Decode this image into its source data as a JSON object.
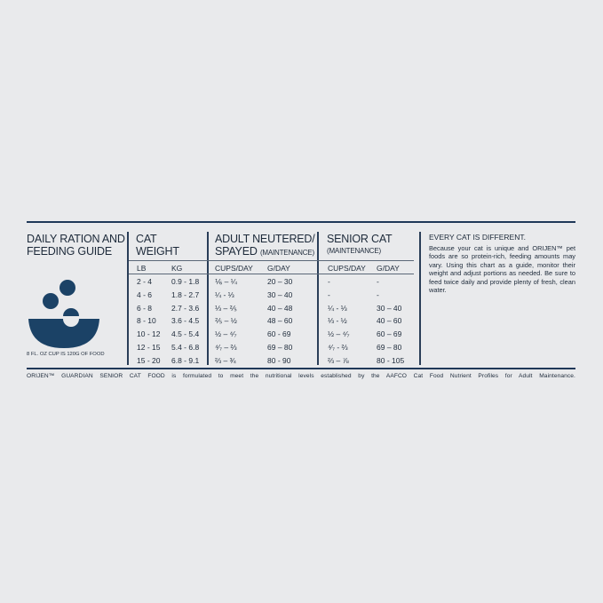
{
  "title": "DAILY RATION AND FEEDING GUIDE",
  "title_line1": "DAILY RATION AND",
  "title_line2": "FEEDING GUIDE",
  "cup_note": "8 FL. OZ CUP IS 120G OF FOOD",
  "weight": {
    "heading1": "CAT",
    "heading2": "WEIGHT",
    "col_lb": "LB",
    "col_kg": "KG"
  },
  "adult": {
    "heading1": "ADULT NEUTERED/",
    "heading2": "SPAYED",
    "heading2_small": "(MAINTENANCE)",
    "col_cups": "CUPS/DAY",
    "col_g": "G/DAY"
  },
  "senior": {
    "heading1": "SENIOR CAT",
    "heading2_small": "(MAINTENANCE)",
    "col_cups": "CUPS/DAY",
    "col_g": "G/DAY"
  },
  "rows": [
    {
      "lb": "2 - 4",
      "kg": "0.9 - 1.8",
      "adult_cups": "⅙ – ¼",
      "adult_g": "20 – 30",
      "senior_cups": "-",
      "senior_g": "-"
    },
    {
      "lb": "4 - 6",
      "kg": "1.8 - 2.7",
      "adult_cups": "¼ - ⅓",
      "adult_g": "30 – 40",
      "senior_cups": "-",
      "senior_g": "-"
    },
    {
      "lb": "6 - 8",
      "kg": "2.7 - 3.6",
      "adult_cups": "⅓ – ⅖",
      "adult_g": "40 – 48",
      "senior_cups": "¼ - ⅓",
      "senior_g": "30 – 40"
    },
    {
      "lb": "8 - 10",
      "kg": "3.6 - 4.5",
      "adult_cups": "⅖ – ½",
      "adult_g": "48 – 60",
      "senior_cups": "⅓ - ½",
      "senior_g": "40 – 60"
    },
    {
      "lb": "10 - 12",
      "kg": "4.5 - 5.4",
      "adult_cups": "½ – ⁴⁄₇",
      "adult_g": "60 - 69",
      "senior_cups": "½ – ⁴⁄₇",
      "senior_g": "60 – 69"
    },
    {
      "lb": "12 - 15",
      "kg": "5.4 - 6.8",
      "adult_cups": "⁴⁄₇ – ⅔",
      "adult_g": "69 – 80",
      "senior_cups": "⁴⁄₇ - ⅔",
      "senior_g": "69 – 80"
    },
    {
      "lb": "15 - 20",
      "kg": "6.8 - 9.1",
      "adult_cups": "⅔ – ¾",
      "adult_g": "80 - 90",
      "senior_cups": "⅔ – ⅞",
      "senior_g": "80 - 105"
    }
  ],
  "note": {
    "heading": "EVERY CAT IS DIFFERENT.",
    "body": "Because your cat is unique and ORIJEN™ pet foods are so protein-rich, feeding amounts may vary. Using this chart as a guide, monitor their weight and adjust portions as needed. Be sure to feed twice daily and provide plenty of fresh, clean water."
  },
  "footer": "ORIJEN™ GUARDIAN SENIOR CAT FOOD is formulated to meet the nutritional levels established by the AAFCO Cat Food Nutrient Profiles for Adult Maintenance.",
  "colors": {
    "navy": "#1b4266",
    "rule": "#1f3858",
    "background": "#e9eaec"
  },
  "icons": [
    "food-bowl-icon"
  ]
}
